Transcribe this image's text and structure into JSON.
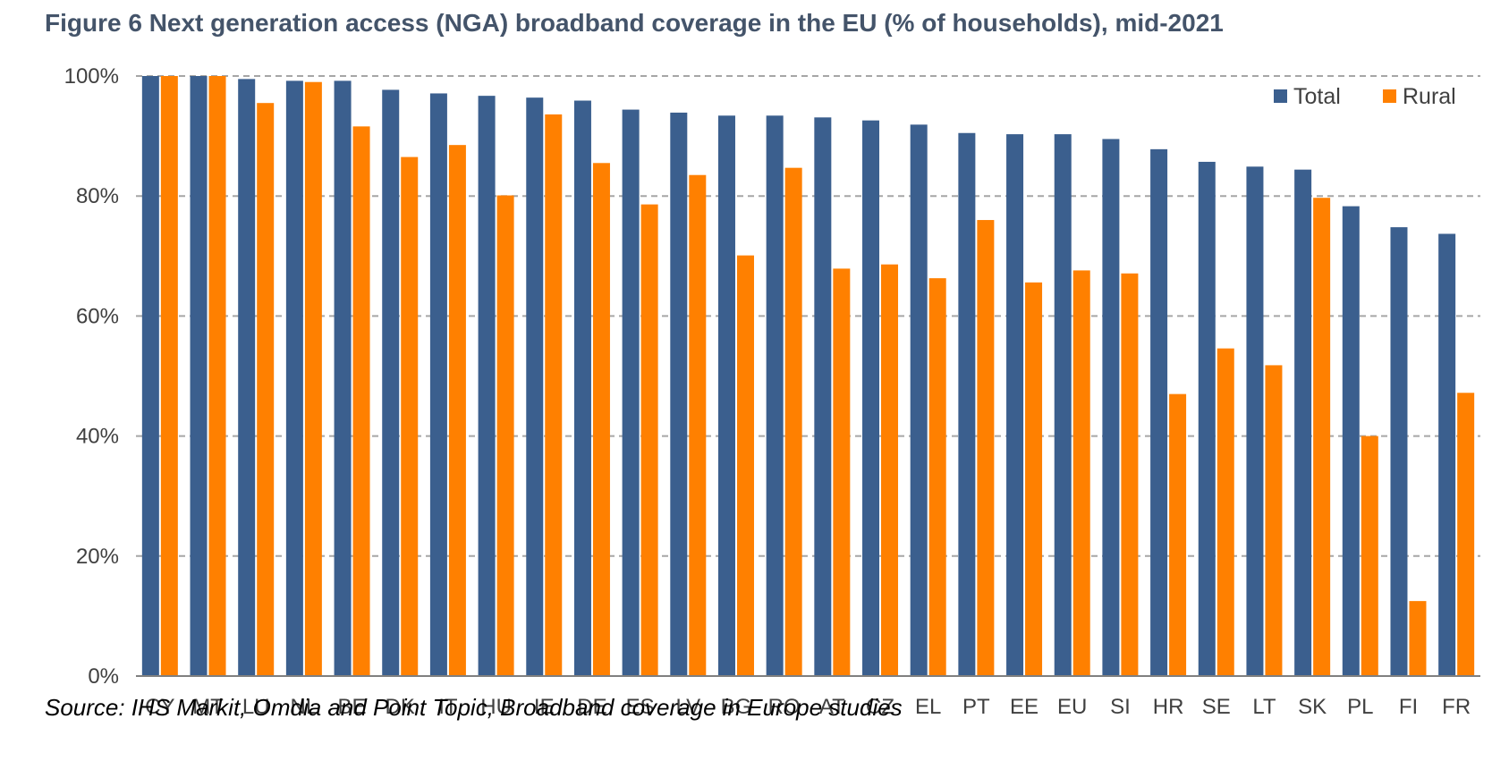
{
  "title": "Figure 6 Next generation access (NGA) broadband coverage in the EU (% of households), mid-2021",
  "source": "Source: IHS Markit, Omdia and Point Topic, Broadband coverage in Europe studies",
  "colors": {
    "total": "#3b5f8e",
    "rural": "#ff8000",
    "grid": "#a6a6a6",
    "axis": "#808080",
    "title": "#44546a"
  },
  "chart_data": {
    "type": "bar",
    "categories": [
      "CY",
      "MT",
      "LU",
      "NL",
      "BE",
      "DK",
      "IT",
      "HU",
      "IE",
      "DE",
      "ES",
      "LV",
      "BG",
      "RO",
      "AT",
      "CZ",
      "EL",
      "PT",
      "EE",
      "EU",
      "SI",
      "HR",
      "SE",
      "LT",
      "SK",
      "PL",
      "FI",
      "FR"
    ],
    "series": [
      {
        "name": "Total",
        "values": [
          100,
          100,
          99.5,
          99.2,
          99.2,
          97.7,
          97.1,
          96.7,
          96.4,
          95.9,
          94.4,
          93.9,
          93.4,
          93.4,
          93.1,
          92.6,
          91.9,
          90.5,
          90.3,
          90.3,
          89.5,
          87.8,
          85.7,
          84.9,
          84.4,
          78.3,
          74.8,
          73.7
        ]
      },
      {
        "name": "Rural",
        "values": [
          100,
          100,
          95.5,
          99,
          91.6,
          86.5,
          88.5,
          80.1,
          93.6,
          85.5,
          78.6,
          83.5,
          70.1,
          84.7,
          67.9,
          68.6,
          66.3,
          76,
          65.6,
          67.6,
          67.1,
          47,
          54.6,
          51.8,
          79.7,
          40,
          12.5,
          47.2
        ]
      }
    ],
    "yticks": [
      "0%",
      "20%",
      "40%",
      "60%",
      "80%",
      "100%"
    ],
    "ylim": [
      0,
      100
    ],
    "grid": true,
    "legend_position": "top-right"
  }
}
